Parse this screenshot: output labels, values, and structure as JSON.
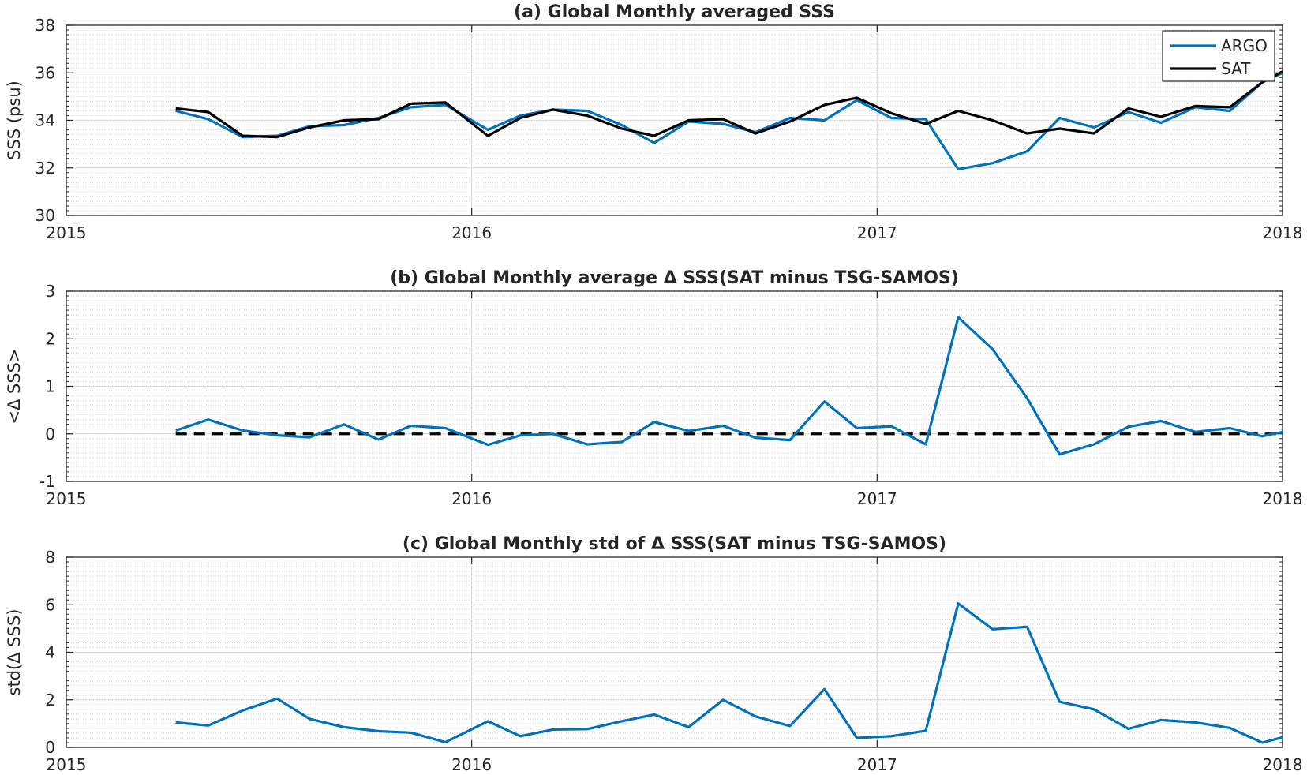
{
  "chart_data": [
    {
      "type": "line",
      "title": "(a) Global Monthly averaged SSS",
      "ylabel": "SSS (psu)",
      "xlabel": "",
      "xlim": [
        2015,
        2018
      ],
      "ylim": [
        30,
        38
      ],
      "yticks": [
        "30",
        "32",
        "34",
        "36",
        "38"
      ],
      "xticks": [
        "2015",
        "2016",
        "2017",
        "2018"
      ],
      "grid": true,
      "minor_grid": true,
      "legend": "top-right",
      "x": [
        2015.27,
        2015.35,
        2015.435,
        2015.52,
        2015.6,
        2015.685,
        2015.77,
        2015.85,
        2015.935,
        2016.04,
        2016.12,
        2016.2,
        2016.285,
        2016.37,
        2016.45,
        2016.535,
        2016.62,
        2016.7,
        2016.785,
        2016.87,
        2016.95,
        2017.035,
        2017.12,
        2017.2,
        2017.285,
        2017.37,
        2017.45,
        2017.535,
        2017.62,
        2017.7,
        2017.785,
        2017.87,
        2017.95,
        2018.0
      ],
      "series": [
        {
          "name": "ARGO",
          "color": "#0072BD",
          "values": [
            34.4,
            34.05,
            33.3,
            33.35,
            33.75,
            33.8,
            34.1,
            34.55,
            34.65,
            33.6,
            34.2,
            34.45,
            34.4,
            33.8,
            33.05,
            33.95,
            33.85,
            33.5,
            34.1,
            34.0,
            34.85,
            34.1,
            34.05,
            31.95,
            32.2,
            32.7,
            34.1,
            33.7,
            34.35,
            33.9,
            34.55,
            34.4,
            35.6,
            36.0
          ]
        },
        {
          "name": "SAT",
          "color": "#000000",
          "values": [
            34.5,
            34.35,
            33.35,
            33.3,
            33.7,
            34.0,
            34.05,
            34.7,
            34.75,
            33.35,
            34.1,
            34.45,
            34.2,
            33.65,
            33.35,
            34.0,
            34.05,
            33.45,
            33.95,
            34.65,
            34.95,
            34.3,
            33.85,
            34.4,
            34.0,
            33.45,
            33.65,
            33.45,
            34.5,
            34.15,
            34.6,
            34.55,
            35.6,
            36.05
          ]
        }
      ]
    },
    {
      "type": "line",
      "title": "(b) Global Monthly average Δ SSS(SAT minus TSG-SAMOS)",
      "ylabel": "<Δ SSS>",
      "xlabel": "",
      "xlim": [
        2015,
        2018
      ],
      "ylim": [
        -1,
        3
      ],
      "yticks": [
        "-1",
        "0",
        "1",
        "2",
        "3"
      ],
      "xticks": [
        "2015",
        "2016",
        "2017",
        "2018"
      ],
      "grid": true,
      "minor_grid": true,
      "reference_line": {
        "y": 0,
        "style": "dashed",
        "color": "#000000"
      },
      "x": [
        2015.27,
        2015.35,
        2015.435,
        2015.52,
        2015.6,
        2015.685,
        2015.77,
        2015.85,
        2015.935,
        2016.04,
        2016.12,
        2016.2,
        2016.285,
        2016.37,
        2016.45,
        2016.535,
        2016.62,
        2016.7,
        2016.785,
        2016.87,
        2016.95,
        2017.035,
        2017.12,
        2017.2,
        2017.285,
        2017.37,
        2017.45,
        2017.535,
        2017.62,
        2017.7,
        2017.785,
        2017.87,
        2017.95,
        2018.0
      ],
      "series": [
        {
          "color": "#0072BD",
          "values": [
            0.07,
            0.3,
            0.07,
            -0.03,
            -0.07,
            0.2,
            -0.12,
            0.17,
            0.12,
            -0.23,
            -0.03,
            0.0,
            -0.22,
            -0.17,
            0.25,
            0.06,
            0.17,
            -0.08,
            -0.13,
            0.68,
            0.12,
            0.16,
            -0.22,
            2.45,
            1.78,
            0.75,
            -0.43,
            -0.22,
            0.15,
            0.27,
            0.04,
            0.12,
            -0.05,
            0.04
          ]
        }
      ]
    },
    {
      "type": "line",
      "title": "(c) Global Monthly std of Δ SSS(SAT minus TSG-SAMOS)",
      "ylabel": "std(Δ SSS)",
      "xlabel": "",
      "xlim": [
        2015,
        2018
      ],
      "ylim": [
        0,
        8
      ],
      "yticks": [
        "0",
        "2",
        "4",
        "6",
        "8"
      ],
      "xticks": [
        "2015",
        "2016",
        "2017",
        "2018"
      ],
      "grid": true,
      "minor_grid": true,
      "x": [
        2015.27,
        2015.35,
        2015.435,
        2015.52,
        2015.6,
        2015.685,
        2015.77,
        2015.85,
        2015.935,
        2016.04,
        2016.12,
        2016.2,
        2016.285,
        2016.37,
        2016.45,
        2016.535,
        2016.62,
        2016.7,
        2016.785,
        2016.87,
        2016.95,
        2017.035,
        2017.12,
        2017.2,
        2017.285,
        2017.37,
        2017.45,
        2017.535,
        2017.62,
        2017.7,
        2017.785,
        2017.87,
        2017.95,
        2018.0
      ],
      "series": [
        {
          "color": "#0072BD",
          "values": [
            1.05,
            0.92,
            1.55,
            2.05,
            1.2,
            0.85,
            0.68,
            0.62,
            0.22,
            1.1,
            0.47,
            0.75,
            0.77,
            1.1,
            1.38,
            0.85,
            2.0,
            1.3,
            0.9,
            2.45,
            0.4,
            0.47,
            0.7,
            6.05,
            4.97,
            5.07,
            1.92,
            1.6,
            0.78,
            1.15,
            1.05,
            0.82,
            0.2,
            0.42
          ]
        }
      ]
    }
  ]
}
